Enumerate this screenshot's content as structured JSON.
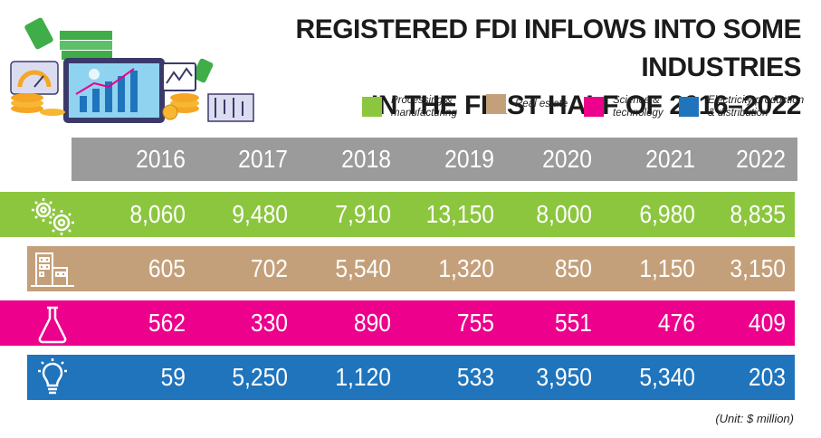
{
  "title_line1": "REGISTERED FDI INFLOWS INTO SOME INDUSTRIES",
  "title_line2": "IN THE FIRST HALF OF 2016–2022",
  "unit_note": "(Unit: $ million)",
  "colors": {
    "processing": "#8cc63f",
    "real_estate": "#c4a07a",
    "science": "#ec008c",
    "electricity": "#1f74bc",
    "header": "#9b9b9b"
  },
  "chart_data": {
    "type": "table",
    "title": "REGISTERED FDI INFLOWS INTO SOME INDUSTRIES IN THE FIRST HALF OF 2016–2022",
    "unit": "$ million",
    "categories": [
      "2016",
      "2017",
      "2018",
      "2019",
      "2020",
      "2021",
      "2022"
    ],
    "series": [
      {
        "name": "Processing & manufacturing",
        "legend_label": "Processing &\nmanufacturing",
        "color": "#8cc63f",
        "icon": "gears-icon",
        "values": [
          8060,
          9480,
          7910,
          13150,
          8000,
          6980,
          8835
        ],
        "labels": [
          "8,060",
          "9,480",
          "7,910",
          "13,150",
          "8,000",
          "6,980",
          "8,835"
        ]
      },
      {
        "name": "Real estate",
        "legend_label": "Real estate",
        "color": "#c4a07a",
        "icon": "buildings-icon",
        "values": [
          605,
          702,
          5540,
          1320,
          850,
          1150,
          3150
        ],
        "labels": [
          "605",
          "702",
          "5,540",
          "1,320",
          "850",
          "1,150",
          "3,150"
        ]
      },
      {
        "name": "Science & technology",
        "legend_label": "Science &\ntechnology",
        "color": "#ec008c",
        "icon": "flask-icon",
        "values": [
          562,
          330,
          890,
          755,
          551,
          476,
          409
        ],
        "labels": [
          "562",
          "330",
          "890",
          "755",
          "551",
          "476",
          "409"
        ]
      },
      {
        "name": "Electricity production & distribution",
        "legend_label": "Electricity production\n& distribution",
        "color": "#1f74bc",
        "icon": "lightbulb-icon",
        "values": [
          59,
          5250,
          1120,
          533,
          3950,
          5340,
          203
        ],
        "labels": [
          "59",
          "5,250",
          "1,120",
          "533",
          "3,950",
          "5,340",
          "203"
        ]
      }
    ]
  }
}
